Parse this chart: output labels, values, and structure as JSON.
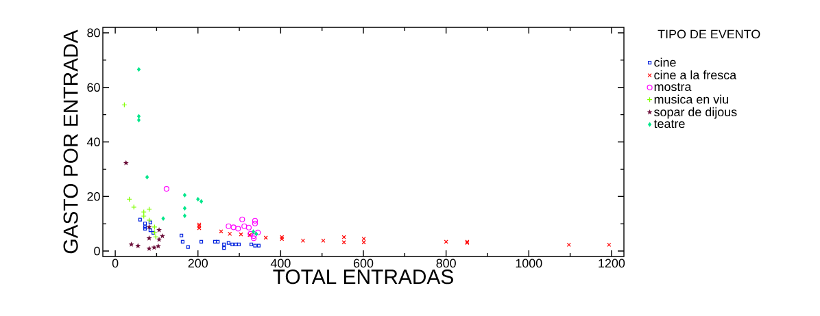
{
  "chart_data": {
    "type": "scatter",
    "xlabel": "TOTAL ENTRADAS",
    "ylabel": "GASTO POR ENTRADA",
    "legend_title": "TIPO DE EVENTO",
    "legend": "right",
    "xlim": [
      -30,
      1230
    ],
    "ylim": [
      -2,
      82
    ],
    "xticks": [
      0,
      200,
      400,
      600,
      800,
      1000,
      1200
    ],
    "yticks": [
      0,
      20,
      40,
      60,
      80
    ],
    "series": [
      {
        "name": "cine",
        "color": "#0022dd",
        "marker": "square",
        "x": [
          60,
          72,
          85,
          72,
          72,
          85,
          92,
          160,
          163,
          176,
          208,
          241,
          248,
          263,
          263,
          274,
          283,
          292,
          299,
          329,
          338,
          347
        ],
        "values": [
          11.5,
          10.1,
          10.5,
          8.8,
          8.2,
          7.6,
          6.7,
          5.7,
          3.4,
          1.5,
          3.4,
          3.4,
          3.4,
          2.4,
          1.1,
          3.0,
          2.4,
          2.4,
          2.4,
          2.4,
          2.0,
          2.0
        ]
      },
      {
        "name": "cine a la fresca",
        "color": "#ff0000",
        "marker": "cross",
        "x": [
          203,
          203,
          203,
          256,
          277,
          304,
          325,
          364,
          403,
          403,
          454,
          503,
          553,
          553,
          601,
          601,
          800,
          851,
          851,
          1097,
          1194
        ],
        "values": [
          9.2,
          8.4,
          9.7,
          7.2,
          6.3,
          6.1,
          5.9,
          4.9,
          5.1,
          4.4,
          3.8,
          3.8,
          5.1,
          3.2,
          4.5,
          3.2,
          3.4,
          3.4,
          3.0,
          2.3,
          2.3
        ]
      },
      {
        "name": "mostra",
        "color": "#ff00ff",
        "marker": "circle",
        "x": [
          124,
          274,
          286,
          297,
          307,
          312,
          323,
          338,
          338,
          345,
          327,
          335,
          335
        ],
        "values": [
          22.8,
          9.1,
          8.7,
          8.2,
          11.6,
          9.1,
          8.6,
          11.1,
          10.1,
          6.8,
          6.3,
          5.5,
          4.7
        ]
      },
      {
        "name": "musica en viu",
        "color": "#80ff00",
        "marker": "plus",
        "x": [
          22,
          34,
          45,
          69,
          82,
          69,
          82,
          95,
          95,
          98
        ],
        "values": [
          53.6,
          19,
          16.1,
          14.3,
          15.3,
          12.8,
          11.3,
          8.8,
          6.7,
          5.2
        ]
      },
      {
        "name": "sopar de dijous",
        "color": "#6b0f3a",
        "marker": "star",
        "x": [
          26,
          39,
          55,
          82,
          82,
          82,
          94,
          106,
          106,
          104,
          114
        ],
        "values": [
          32.3,
          2.4,
          1.9,
          8.8,
          4.7,
          0.9,
          1.3,
          7.7,
          4.2,
          1.8,
          5.5
        ]
      },
      {
        "name": "teatre",
        "color": "#00e68a",
        "marker": "diamond",
        "x": [
          57,
          57,
          57,
          77,
          168,
          200,
          208,
          168,
          168,
          116,
          334,
          341
        ],
        "values": [
          66.6,
          49.4,
          48.0,
          27.1,
          20.5,
          19,
          18.2,
          15.7,
          12.9,
          11.9,
          7.1,
          6.3
        ]
      }
    ]
  }
}
